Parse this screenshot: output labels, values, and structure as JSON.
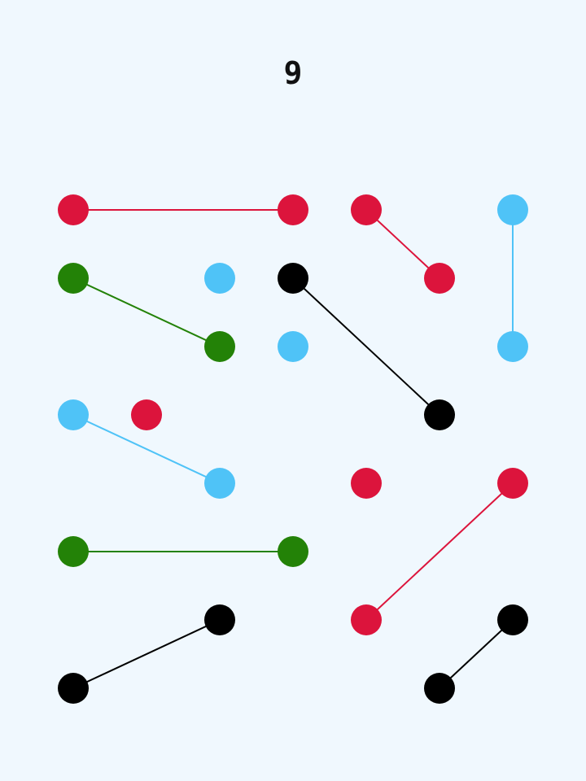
{
  "score": "9",
  "colors": {
    "red": "#dc143c",
    "blue": "#4fc3f7",
    "green": "#238207",
    "black": "#000000"
  },
  "grid": {
    "cols": 7,
    "rows": 8
  },
  "dots": [
    {
      "id": "d1",
      "col": 0,
      "row": 0,
      "color": "red"
    },
    {
      "id": "d2",
      "col": 3,
      "row": 0,
      "color": "red"
    },
    {
      "id": "d3",
      "col": 4,
      "row": 0,
      "color": "red"
    },
    {
      "id": "d4",
      "col": 6,
      "row": 0,
      "color": "blue"
    },
    {
      "id": "d5",
      "col": 0,
      "row": 1,
      "color": "green"
    },
    {
      "id": "d6",
      "col": 2,
      "row": 1,
      "color": "blue"
    },
    {
      "id": "d7",
      "col": 3,
      "row": 1,
      "color": "black"
    },
    {
      "id": "d8",
      "col": 5,
      "row": 1,
      "color": "red"
    },
    {
      "id": "d9",
      "col": 2,
      "row": 2,
      "color": "green"
    },
    {
      "id": "d10",
      "col": 3,
      "row": 2,
      "color": "blue"
    },
    {
      "id": "d11",
      "col": 6,
      "row": 2,
      "color": "blue"
    },
    {
      "id": "d12",
      "col": 0,
      "row": 3,
      "color": "blue"
    },
    {
      "id": "d13",
      "col": 1,
      "row": 3,
      "color": "red"
    },
    {
      "id": "d14",
      "col": 5,
      "row": 3,
      "color": "black"
    },
    {
      "id": "d15",
      "col": 2,
      "row": 4,
      "color": "blue"
    },
    {
      "id": "d16",
      "col": 4,
      "row": 4,
      "color": "red"
    },
    {
      "id": "d17",
      "col": 6,
      "row": 4,
      "color": "red"
    },
    {
      "id": "d18",
      "col": 0,
      "row": 5,
      "color": "green"
    },
    {
      "id": "d19",
      "col": 3,
      "row": 5,
      "color": "green"
    },
    {
      "id": "d20",
      "col": 2,
      "row": 6,
      "color": "black"
    },
    {
      "id": "d21",
      "col": 4,
      "row": 6,
      "color": "red"
    },
    {
      "id": "d22",
      "col": 6,
      "row": 6,
      "color": "black"
    },
    {
      "id": "d23",
      "col": 0,
      "row": 7,
      "color": "black"
    },
    {
      "id": "d24",
      "col": 5,
      "row": 7,
      "color": "black"
    }
  ],
  "links": [
    {
      "from": "d1",
      "to": "d2",
      "color": "red"
    },
    {
      "from": "d3",
      "to": "d8",
      "color": "red"
    },
    {
      "from": "d4",
      "to": "d11",
      "color": "blue"
    },
    {
      "from": "d5",
      "to": "d9",
      "color": "green"
    },
    {
      "from": "d7",
      "to": "d14",
      "color": "black"
    },
    {
      "from": "d12",
      "to": "d15",
      "color": "blue"
    },
    {
      "from": "d18",
      "to": "d19",
      "color": "green"
    },
    {
      "from": "d17",
      "to": "d21",
      "color": "red"
    },
    {
      "from": "d20",
      "to": "d23",
      "color": "black"
    },
    {
      "from": "d22",
      "to": "d24",
      "color": "black"
    }
  ]
}
